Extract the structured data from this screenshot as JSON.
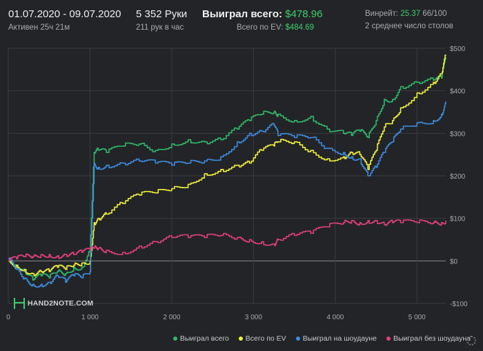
{
  "header": {
    "date_range": "01.07.2020 - 09.07.2020",
    "active_time": "Активен 25ч 21м",
    "hands": "5 352 Руки",
    "hands_per_hour": "211 рук в час",
    "won_total_label": "Выиграл всего:",
    "won_total_value": "$478.96",
    "ev_label": "Всего по EV:",
    "ev_value": "$484.69",
    "winrate_label": "Винрейт:",
    "winrate_value": "25.37",
    "winrate_unit": "66/100",
    "avg_tables": "2 среднее число столов"
  },
  "logo_text": "HAND2NOTE.COM",
  "colors": {
    "won_total": "#2fb86a",
    "ev": "#f2f23a",
    "showdown": "#3c8de0",
    "non_showdown": "#e0407c",
    "grid": "#3a3b3f",
    "zero_line": "#8a8b90"
  },
  "chart_data": {
    "type": "line",
    "title": "",
    "xlabel": "",
    "ylabel": "",
    "xlim": [
      0,
      5352
    ],
    "ylim": [
      -100,
      500
    ],
    "x_ticks": [
      0,
      1000,
      2000,
      3000,
      4000,
      5000
    ],
    "x_tick_labels": [
      "0",
      "1 000",
      "2 000",
      "3 000",
      "4 000",
      "5 000"
    ],
    "y_ticks": [
      -100,
      0,
      100,
      200,
      300,
      400,
      500
    ],
    "y_tick_labels": [
      "-$100",
      "$0",
      "$100",
      "$200",
      "$300",
      "$400",
      "$500"
    ],
    "grid": true,
    "legend": "bottom-right",
    "x": [
      0,
      100,
      200,
      300,
      400,
      500,
      600,
      700,
      800,
      900,
      1000,
      1050,
      1100,
      1200,
      1400,
      1600,
      1800,
      2000,
      2200,
      2400,
      2600,
      2800,
      2950,
      3100,
      3250,
      3300,
      3500,
      3700,
      3900,
      4100,
      4200,
      4300,
      4400,
      4500,
      4600,
      4700,
      4800,
      5000,
      5200,
      5300,
      5352
    ],
    "series": [
      {
        "name": "Выиграл всего",
        "values": [
          5,
          -10,
          -25,
          -45,
          -35,
          -40,
          -25,
          -30,
          -15,
          -15,
          30,
          255,
          260,
          255,
          270,
          275,
          260,
          275,
          285,
          280,
          285,
          310,
          330,
          345,
          350,
          345,
          330,
          340,
          310,
          300,
          295,
          305,
          290,
          330,
          380,
          380,
          410,
          420,
          425,
          430,
          479
        ]
      },
      {
        "name": "Всего по EV",
        "values": [
          0,
          -10,
          -20,
          -30,
          -25,
          -25,
          -15,
          -20,
          -10,
          -5,
          0,
          90,
          100,
          110,
          135,
          155,
          160,
          170,
          180,
          205,
          215,
          225,
          230,
          260,
          270,
          280,
          280,
          260,
          240,
          245,
          255,
          250,
          215,
          260,
          315,
          330,
          360,
          395,
          420,
          440,
          485
        ]
      },
      {
        "name": "Выиграл на шоудауне",
        "values": [
          5,
          -20,
          -40,
          -55,
          -55,
          -50,
          -35,
          -50,
          -35,
          -40,
          -25,
          230,
          220,
          225,
          230,
          235,
          230,
          225,
          230,
          235,
          245,
          280,
          300,
          305,
          320,
          295,
          290,
          290,
          265,
          255,
          245,
          240,
          200,
          220,
          255,
          280,
          310,
          325,
          330,
          345,
          375
        ]
      },
      {
        "name": "Выиграл без шоудауна",
        "values": [
          0,
          5,
          10,
          10,
          15,
          15,
          12,
          15,
          15,
          20,
          25,
          30,
          30,
          25,
          20,
          35,
          45,
          55,
          55,
          55,
          60,
          55,
          50,
          45,
          40,
          50,
          60,
          65,
          80,
          90,
          95,
          90,
          95,
          95,
          85,
          90,
          90,
          90,
          90,
          90,
          95
        ]
      }
    ]
  },
  "legend_labels": [
    "Выиграл всего",
    "Всего по EV",
    "Выиграл на шоудауне",
    "Выиграл без шоудауна"
  ]
}
